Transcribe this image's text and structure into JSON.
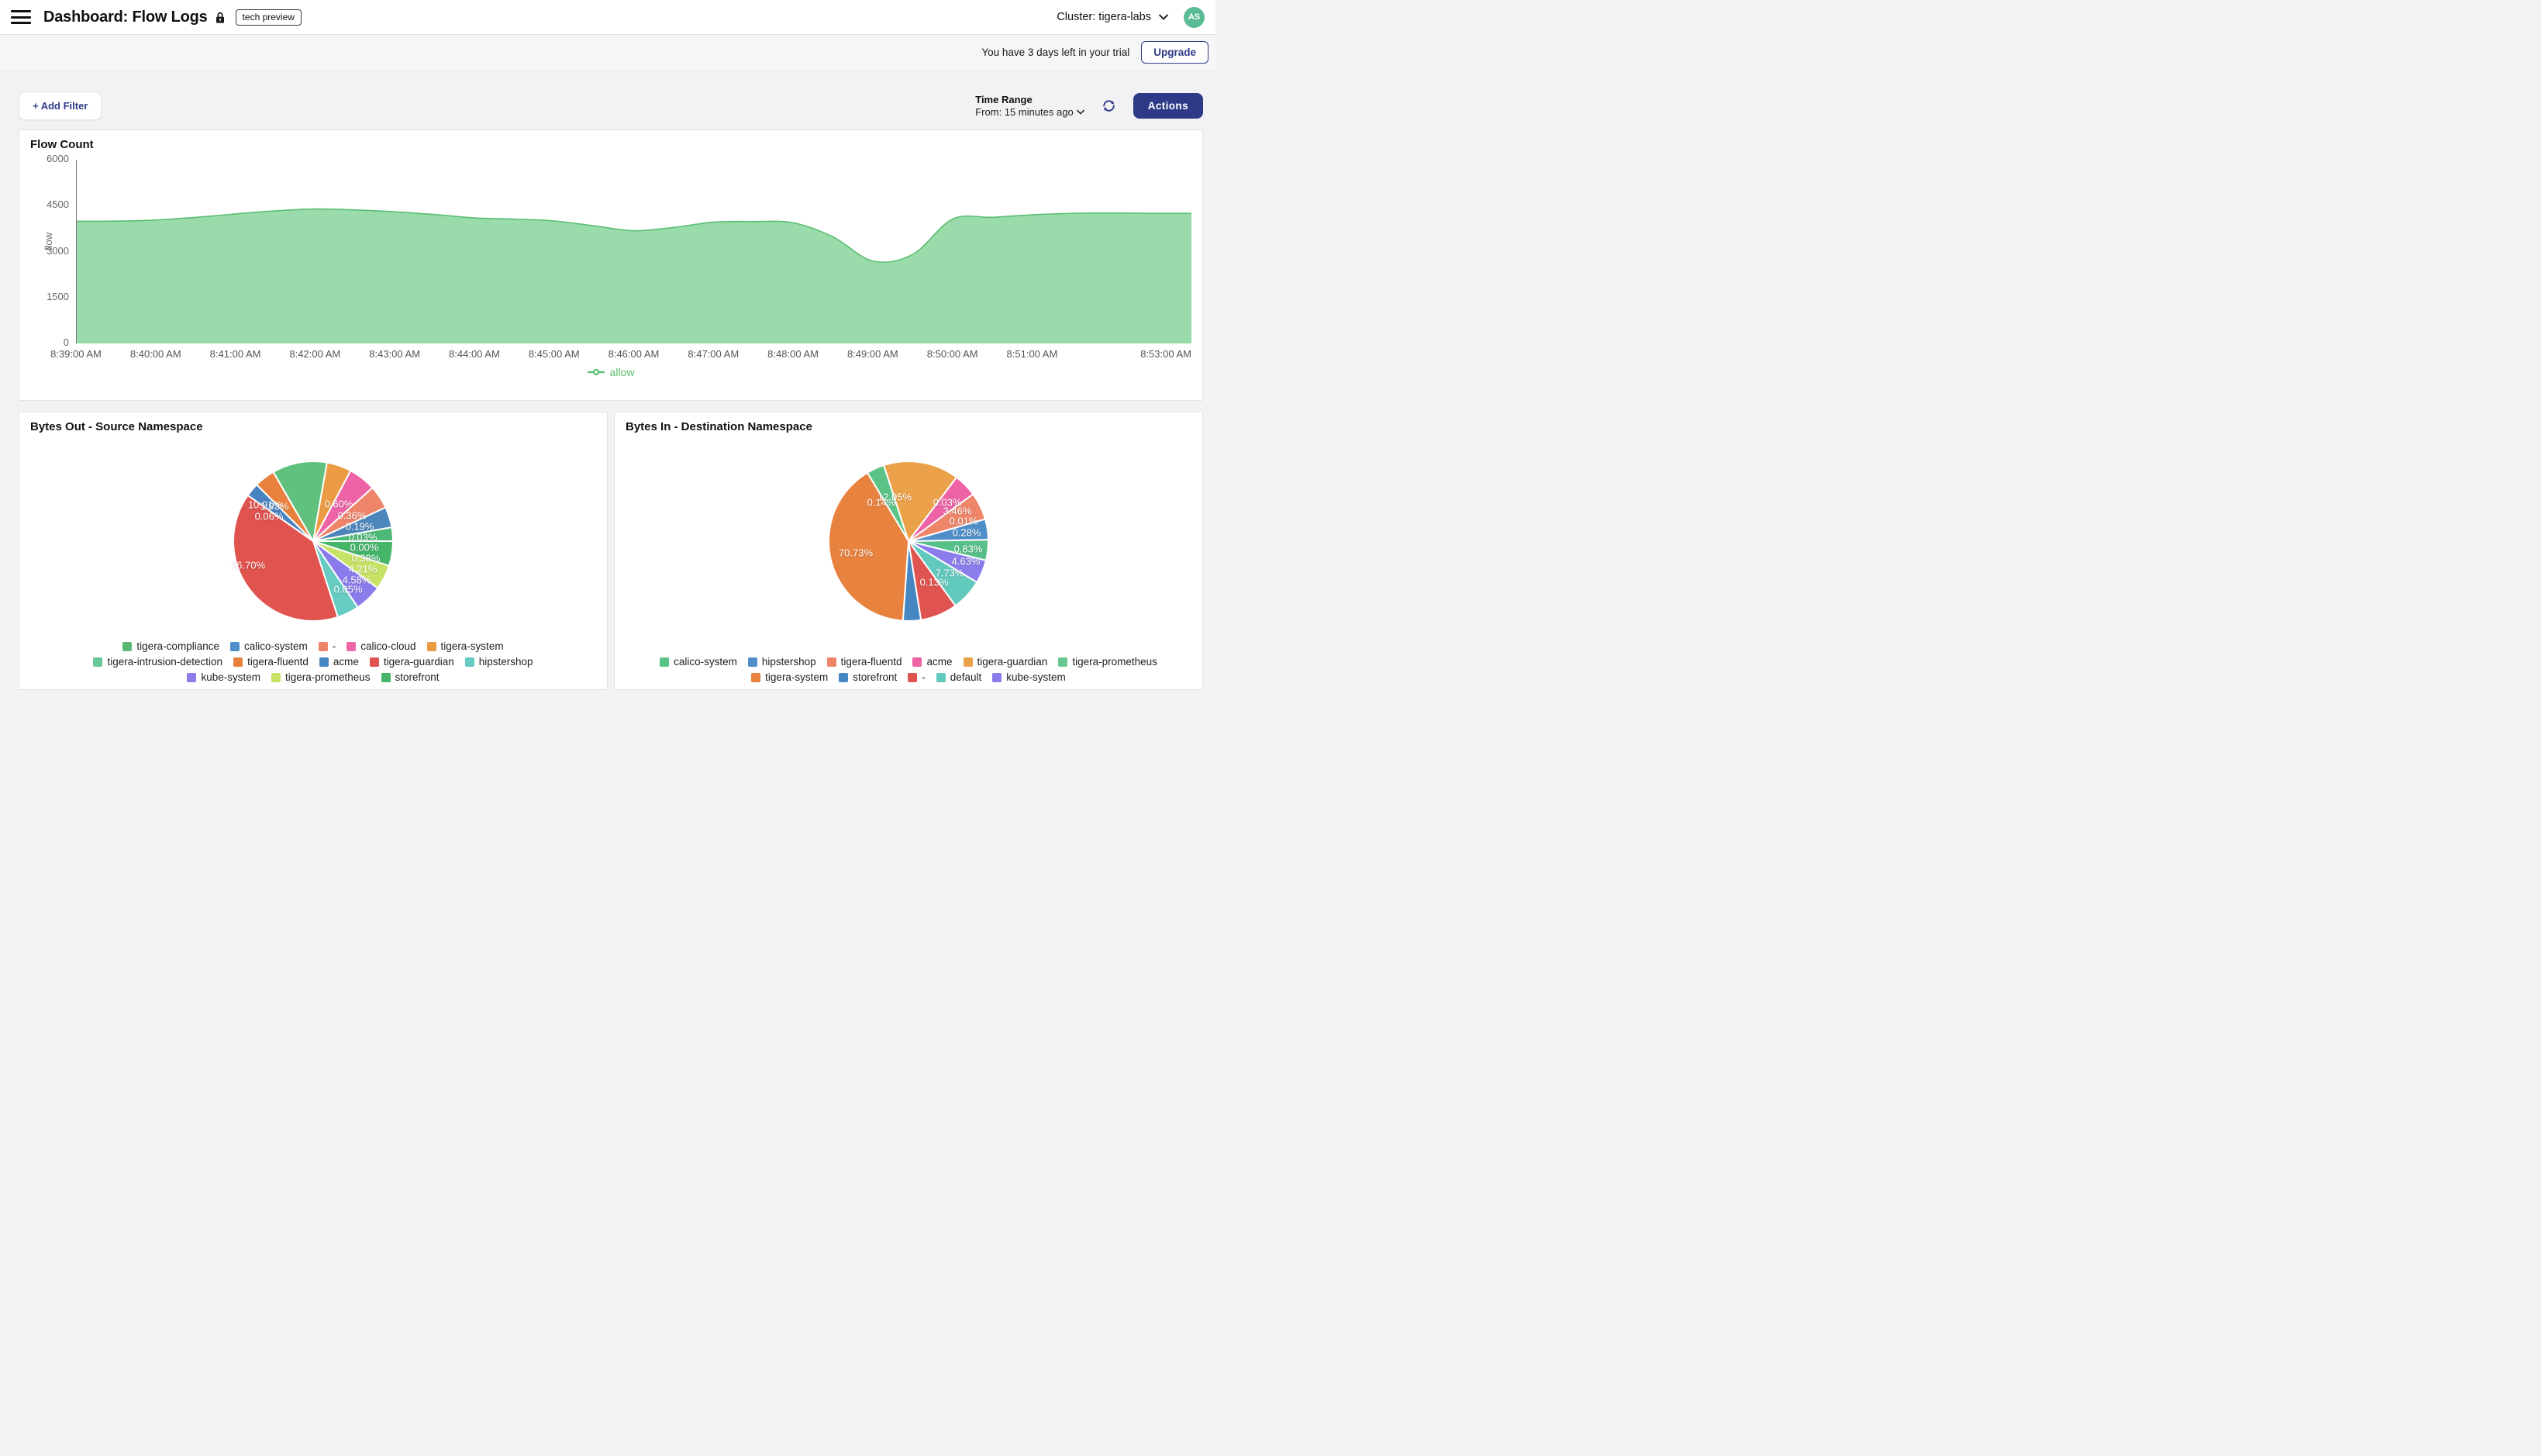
{
  "header": {
    "title": "Dashboard: Flow Logs",
    "badge": "tech preview",
    "cluster_label": "Cluster: tigera-labs",
    "avatar_initials": "AS"
  },
  "trial_bar": {
    "message": "You have 3 days left in your trial",
    "upgrade_label": "Upgrade"
  },
  "toolbar": {
    "add_filter_label": "+ Add Filter",
    "time_range_title": "Time Range",
    "time_range_value": "From: 15 minutes ago",
    "actions_label": "Actions"
  },
  "chart_data": [
    {
      "type": "area",
      "title": "Flow Count",
      "ylabel": "flow",
      "ylim": [
        0,
        6000
      ],
      "yticks": [
        0,
        1500,
        3000,
        4500,
        6000
      ],
      "x_interval_seconds": 30,
      "x_ticks": [
        {
          "label": "8:39:00 AM",
          "minute": 0
        },
        {
          "label": "8:40:00 AM",
          "minute": 1
        },
        {
          "label": "8:41:00 AM",
          "minute": 2
        },
        {
          "label": "8:42:00 AM",
          "minute": 3
        },
        {
          "label": "8:43:00 AM",
          "minute": 4
        },
        {
          "label": "8:44:00 AM",
          "minute": 5
        },
        {
          "label": "8:45:00 AM",
          "minute": 6
        },
        {
          "label": "8:46:00 AM",
          "minute": 7
        },
        {
          "label": "8:47:00 AM",
          "minute": 8
        },
        {
          "label": "8:48:00 AM",
          "minute": 9
        },
        {
          "label": "8:49:00 AM",
          "minute": 10
        },
        {
          "label": "8:50:00 AM",
          "minute": 11
        },
        {
          "label": "8:51:00 AM",
          "minute": 12
        },
        {
          "label": "8:53:00 AM",
          "minute": 14
        }
      ],
      "series": [
        {
          "name": "allow",
          "color": "#5abf72",
          "fill": "#9adbab",
          "values": [
            3990,
            3995,
            4030,
            4120,
            4230,
            4330,
            4390,
            4360,
            4300,
            4210,
            4100,
            4060,
            4000,
            3840,
            3680,
            3790,
            3960,
            3980,
            3940,
            3480,
            2690,
            2910,
            4060,
            4120,
            4200,
            4250,
            4260,
            4250,
            4250
          ]
        }
      ],
      "legend_position": "bottom"
    },
    {
      "type": "pie",
      "title": "Bytes Out - Source Namespace",
      "slices": [
        {
          "name": "tigera-compliance",
          "label": "10.91%",
          "value": 10.91,
          "color": "#60c17e"
        },
        {
          "name": "tigera-system",
          "label": "0.60%",
          "value": 0.6,
          "color": "#eb9b44"
        },
        {
          "name": "calico-cloud",
          "label": "0.36%",
          "value": 0.36,
          "color": "#ee62a6"
        },
        {
          "name": "-",
          "label": "0.19%",
          "value": 0.19,
          "color": "#ee8468"
        },
        {
          "name": "calico-system",
          "label": "0.03%",
          "value": 0.03,
          "color": "#4c86bb"
        },
        {
          "name": "tigera-intrusion-detection",
          "label": "0.00%",
          "value": 0.0,
          "color": "#4db977"
        },
        {
          "name": "storefront",
          "label": "0.38%",
          "value": 0.38,
          "color": "#45b56a"
        },
        {
          "name": "tigera-prometheus",
          "label": "4.21%",
          "value": 4.21,
          "color": "#c6e366"
        },
        {
          "name": "kube-system",
          "label": "4.58%",
          "value": 4.58,
          "color": "#8b7cec"
        },
        {
          "name": "hipstershop",
          "label": "0.05%",
          "value": 0.05,
          "color": "#66cbc0"
        },
        {
          "name": "tigera-guardian",
          "label": "76.70%",
          "value": 76.7,
          "color": "#e0534f"
        },
        {
          "name": "acme",
          "label": "0.06%",
          "value": 0.06,
          "color": "#4a84c0"
        },
        {
          "name": "tigera-fluentd",
          "label": "1.93%",
          "value": 1.93,
          "color": "#e8813e"
        }
      ],
      "legend_rows": [
        [
          {
            "label": "tigera-compliance",
            "color": "#5cb874"
          },
          {
            "label": "calico-system",
            "color": "#4f8ec9"
          },
          {
            "label": "-",
            "color": "#ee8468"
          },
          {
            "label": "calico-cloud",
            "color": "#ee66a8"
          },
          {
            "label": "tigera-system",
            "color": "#eb9b44"
          }
        ],
        [
          {
            "label": "tigera-intrusion-detection",
            "color": "#68c795"
          },
          {
            "label": "tigera-fluentd",
            "color": "#e8813e"
          },
          {
            "label": "acme",
            "color": "#4688c4"
          },
          {
            "label": "tigera-guardian",
            "color": "#df5450"
          },
          {
            "label": "hipstershop",
            "color": "#66cbc0"
          }
        ],
        [
          {
            "label": "kube-system",
            "color": "#8b7cec"
          },
          {
            "label": "tigera-prometheus",
            "color": "#c6e366"
          },
          {
            "label": "storefront",
            "color": "#45b56a"
          }
        ]
      ]
    },
    {
      "type": "pie",
      "title": "Bytes In - Destination Namespace",
      "slices": [
        {
          "name": "calico-system",
          "label": "0.14%",
          "value": 0.14,
          "color": "#5cc387"
        },
        {
          "name": "tigera-guardian",
          "label": "12.05%",
          "value": 12.05,
          "color": "#eba04a"
        },
        {
          "name": "acme",
          "label": "0.03%",
          "value": 0.03,
          "color": "#ee62a6"
        },
        {
          "name": "tigera-fluentd",
          "label": "3.46%",
          "value": 3.46,
          "color": "#ee8468"
        },
        {
          "name": "hipstershop",
          "label": "0.01%",
          "value": 0.01,
          "color": "#4f8ec9"
        },
        {
          "name": "tigera-prometheus",
          "label": "0.28%",
          "value": 0.28,
          "color": "#57c088"
        },
        {
          "name": "kube-system",
          "label": "0.83%",
          "value": 0.83,
          "color": "#8b7cec"
        },
        {
          "name": "default",
          "label": "4.63%",
          "value": 4.63,
          "color": "#62c9bd"
        },
        {
          "name": "-",
          "label": "7.73%",
          "value": 7.73,
          "color": "#df5450"
        },
        {
          "name": "storefront",
          "label": "0.13%",
          "value": 0.13,
          "color": "#4687c2"
        },
        {
          "name": "tigera-system",
          "label": "70.73%",
          "value": 70.73,
          "color": "#e8823f"
        }
      ],
      "legend_rows": [
        [
          {
            "label": "calico-system",
            "color": "#5cc387"
          },
          {
            "label": "hipstershop",
            "color": "#4f8ec9"
          },
          {
            "label": "tigera-fluentd",
            "color": "#ee8468"
          },
          {
            "label": "acme",
            "color": "#ee62a6"
          },
          {
            "label": "tigera-guardian",
            "color": "#eba04a"
          },
          {
            "label": "tigera-prometheus",
            "color": "#6cc893"
          }
        ],
        [
          {
            "label": "tigera-system",
            "color": "#e8823f"
          },
          {
            "label": "storefront",
            "color": "#4687c2"
          },
          {
            "label": "-",
            "color": "#df5450"
          },
          {
            "label": "default",
            "color": "#62c9bd"
          },
          {
            "label": "kube-system",
            "color": "#8b7cec"
          }
        ]
      ]
    }
  ]
}
